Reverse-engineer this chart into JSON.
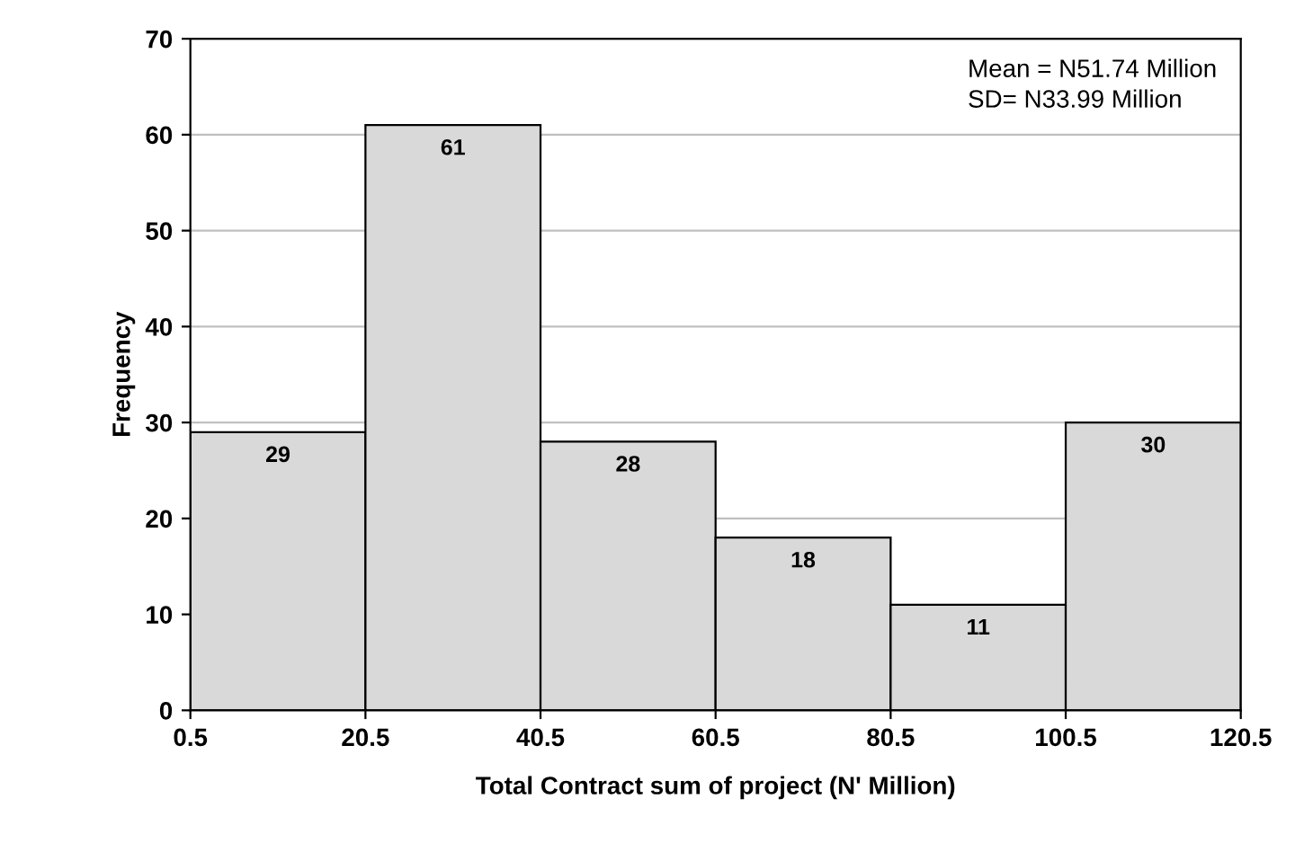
{
  "chart_data": {
    "type": "histogram",
    "bins": [
      0.5,
      20.5,
      40.5,
      60.5,
      80.5,
      100.5,
      120.5
    ],
    "values": [
      29,
      61,
      28,
      18,
      11,
      30
    ],
    "color": "#d9d9d9",
    "data_labels": true,
    "xlabel": "Total Contract sum of project (N' Million)",
    "ylabel": "Frequency",
    "xlim": [
      0.5,
      120.5
    ],
    "xticks": [
      0.5,
      20.5,
      40.5,
      60.5,
      80.5,
      100.5,
      120.5
    ],
    "ylim": [
      0,
      70
    ],
    "yticks": [
      0,
      10,
      20,
      30,
      40,
      50,
      60,
      70
    ],
    "grid": "y",
    "annotations": [
      "Mean = N51.74 Million\nSD= N33.99 Million"
    ]
  }
}
